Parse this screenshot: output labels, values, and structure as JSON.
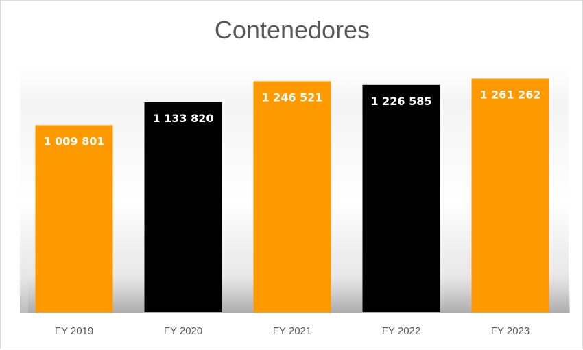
{
  "chart_data": {
    "type": "bar",
    "title": "Contenedores",
    "xlabel": "",
    "ylabel": "",
    "categories": [
      "FY 2019",
      "FY 2020",
      "FY 2021",
      "FY 2022",
      "FY 2023"
    ],
    "values": [
      1009801,
      1133820,
      1246521,
      1226585,
      1261262
    ],
    "data_labels": [
      "1 009 801",
      "1 133 820",
      "1 246 521",
      "1 226 585",
      "1 261 262"
    ],
    "bar_colors": [
      "#ff9900",
      "#000000",
      "#ff9900",
      "#000000",
      "#ff9900"
    ],
    "ylim": [
      0,
      1400000
    ],
    "grid": false,
    "legend": "none"
  }
}
